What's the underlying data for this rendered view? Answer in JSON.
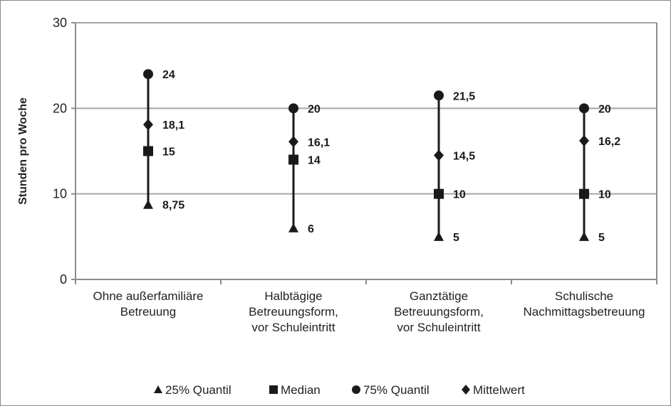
{
  "chart_data": {
    "type": "scatter",
    "ylabel": "Stunden pro Woche",
    "xlabel": "",
    "title": "",
    "ylim": [
      0,
      30
    ],
    "yticks": [
      0,
      10,
      20,
      30
    ],
    "grid": "horizontal",
    "legend_position": "bottom",
    "categories": [
      [
        "Ohne außerfamiliäre",
        "Betreuung"
      ],
      [
        "Halbtägige",
        "Betreuungsform,",
        "vor Schuleintritt"
      ],
      [
        "Ganztätige",
        "Betreuungsform,",
        "vor Schuleintritt"
      ],
      [
        "Schulische",
        "Nachmittagsbetreuung"
      ]
    ],
    "series": [
      {
        "name": "25% Quantil",
        "marker": "triangle",
        "values": [
          8.75,
          6,
          5,
          5
        ],
        "labels": [
          "8,75",
          "6",
          "5",
          "5"
        ]
      },
      {
        "name": "Median",
        "marker": "square",
        "values": [
          15,
          14,
          10,
          10
        ],
        "labels": [
          "15",
          "14",
          "10",
          "10"
        ]
      },
      {
        "name": "75% Quantil",
        "marker": "circle",
        "values": [
          24,
          20,
          21.5,
          20
        ],
        "labels": [
          "24",
          "20",
          "21,5",
          "20"
        ]
      },
      {
        "name": "Mittelwert",
        "marker": "diamond",
        "values": [
          18.1,
          16.1,
          14.5,
          16.2
        ],
        "labels": [
          "18,1",
          "16,1",
          "14,5",
          "16,2"
        ]
      }
    ],
    "colors": {
      "marker": "#1a1a1a",
      "grid": "#a6a6a6",
      "axis": "#8c8c8c",
      "line": "#1a1a1a"
    }
  }
}
